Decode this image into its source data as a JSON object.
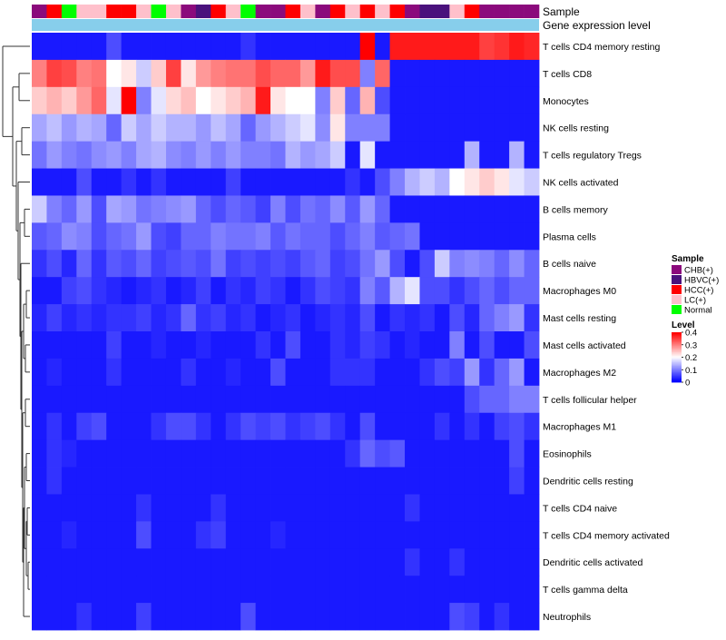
{
  "chart_data": {
    "type": "heatmap",
    "annotation_tracks": [
      "Sample",
      "Gene expression level"
    ],
    "sample_groups": {
      "CHB": "CHB(+)",
      "HBVC": "HBVC(+)",
      "HCC": "HCC(+)",
      "LC": "LC(+)",
      "Normal": "Normal"
    },
    "sample_colors": {
      "CHB": "#8b0a7c",
      "HBVC": "#4a127c",
      "HCC": "#ff0000",
      "LC": "#ffc0cb",
      "Normal": "#00ff00"
    },
    "gene_expression_color": "#87ceeb",
    "columns": [
      "CHB",
      "HCC",
      "Normal",
      "LC",
      "LC",
      "HCC",
      "HCC",
      "LC",
      "Normal",
      "LC",
      "CHB",
      "HBVC",
      "HCC",
      "LC",
      "Normal",
      "CHB",
      "CHB",
      "HCC",
      "LC",
      "CHB",
      "HCC",
      "LC",
      "HCC",
      "LC",
      "HCC",
      "CHB",
      "HBVC",
      "HBVC",
      "LC",
      "HCC",
      "CHB",
      "CHB",
      "CHB",
      "CHB"
    ],
    "rows": [
      "T cells CD4 memory resting",
      "T cells CD8",
      "Monocytes",
      "NK cells resting",
      "T cells regulatory  Tregs",
      "NK cells activated",
      "B cells memory",
      "Plasma cells",
      "B cells naive",
      "Macrophages M0",
      "Mast cells resting",
      "Mast cells activated",
      "Macrophages M2",
      "T cells follicular helper",
      "Macrophages M1",
      "Eosinophils",
      "Dendritic cells resting",
      "T cells CD4 naive",
      "T cells CD4 memory activated",
      "Dendritic cells activated",
      "T cells gamma delta",
      "Neutrophils"
    ],
    "values": [
      [
        0.02,
        0.02,
        0.02,
        0.02,
        0.02,
        0.06,
        0.02,
        0.02,
        0.02,
        0.02,
        0.02,
        0.02,
        0.02,
        0.02,
        0.04,
        0.02,
        0.02,
        0.02,
        0.02,
        0.02,
        0.02,
        0.02,
        0.4,
        0.02,
        0.38,
        0.38,
        0.38,
        0.38,
        0.38,
        0.38,
        0.35,
        0.36,
        0.38,
        0.37
      ],
      [
        0.3,
        0.35,
        0.34,
        0.3,
        0.31,
        0.2,
        0.22,
        0.16,
        0.24,
        0.35,
        0.22,
        0.28,
        0.3,
        0.31,
        0.31,
        0.34,
        0.32,
        0.32,
        0.28,
        0.38,
        0.34,
        0.34,
        0.1,
        0.32,
        0.02,
        0.02,
        0.02,
        0.02,
        0.02,
        0.02,
        0.02,
        0.02,
        0.02,
        0.02
      ],
      [
        0.24,
        0.26,
        0.24,
        0.28,
        0.32,
        0.18,
        0.4,
        0.1,
        0.18,
        0.23,
        0.25,
        0.2,
        0.22,
        0.24,
        0.26,
        0.38,
        0.22,
        0.2,
        0.2,
        0.1,
        0.24,
        0.08,
        0.26,
        0.06,
        0.02,
        0.02,
        0.02,
        0.02,
        0.02,
        0.02,
        0.02,
        0.02,
        0.02,
        0.02
      ],
      [
        0.13,
        0.15,
        0.12,
        0.14,
        0.13,
        0.08,
        0.16,
        0.13,
        0.16,
        0.14,
        0.14,
        0.12,
        0.15,
        0.13,
        0.08,
        0.12,
        0.14,
        0.16,
        0.18,
        0.11,
        0.22,
        0.1,
        0.1,
        0.1,
        0.02,
        0.02,
        0.02,
        0.02,
        0.02,
        0.02,
        0.02,
        0.02,
        0.02,
        0.02
      ],
      [
        0.09,
        0.12,
        0.1,
        0.09,
        0.11,
        0.12,
        0.1,
        0.13,
        0.14,
        0.11,
        0.1,
        0.12,
        0.1,
        0.12,
        0.1,
        0.1,
        0.09,
        0.14,
        0.12,
        0.13,
        0.16,
        0.02,
        0.18,
        0.02,
        0.02,
        0.02,
        0.02,
        0.02,
        0.02,
        0.14,
        0.02,
        0.02,
        0.14,
        0.02
      ],
      [
        0.02,
        0.02,
        0.02,
        0.06,
        0.02,
        0.02,
        0.04,
        0.02,
        0.04,
        0.02,
        0.02,
        0.02,
        0.02,
        0.05,
        0.02,
        0.02,
        0.02,
        0.02,
        0.02,
        0.02,
        0.02,
        0.04,
        0.02,
        0.06,
        0.1,
        0.14,
        0.16,
        0.14,
        0.2,
        0.22,
        0.24,
        0.22,
        0.18,
        0.16
      ],
      [
        0.16,
        0.1,
        0.08,
        0.12,
        0.06,
        0.13,
        0.12,
        0.09,
        0.1,
        0.11,
        0.12,
        0.08,
        0.06,
        0.08,
        0.07,
        0.05,
        0.1,
        0.06,
        0.09,
        0.08,
        0.11,
        0.07,
        0.12,
        0.08,
        0.02,
        0.02,
        0.02,
        0.02,
        0.02,
        0.02,
        0.02,
        0.02,
        0.02,
        0.02
      ],
      [
        0.07,
        0.08,
        0.11,
        0.1,
        0.06,
        0.08,
        0.09,
        0.12,
        0.06,
        0.05,
        0.08,
        0.08,
        0.1,
        0.09,
        0.09,
        0.1,
        0.07,
        0.09,
        0.08,
        0.08,
        0.06,
        0.08,
        0.1,
        0.07,
        0.08,
        0.09,
        0.02,
        0.02,
        0.02,
        0.02,
        0.02,
        0.02,
        0.02,
        0.02
      ],
      [
        0.04,
        0.06,
        0.03,
        0.08,
        0.04,
        0.07,
        0.06,
        0.08,
        0.05,
        0.06,
        0.07,
        0.06,
        0.09,
        0.05,
        0.06,
        0.05,
        0.06,
        0.05,
        0.07,
        0.08,
        0.05,
        0.06,
        0.09,
        0.12,
        0.06,
        0.02,
        0.06,
        0.16,
        0.1,
        0.11,
        0.1,
        0.08,
        0.11,
        0.08
      ],
      [
        0.02,
        0.02,
        0.05,
        0.06,
        0.04,
        0.03,
        0.02,
        0.03,
        0.04,
        0.02,
        0.03,
        0.05,
        0.02,
        0.04,
        0.03,
        0.05,
        0.04,
        0.02,
        0.04,
        0.06,
        0.05,
        0.04,
        0.1,
        0.07,
        0.14,
        0.18,
        0.06,
        0.06,
        0.04,
        0.06,
        0.08,
        0.06,
        0.08,
        0.08
      ],
      [
        0.03,
        0.05,
        0.03,
        0.04,
        0.03,
        0.04,
        0.04,
        0.05,
        0.03,
        0.04,
        0.08,
        0.04,
        0.05,
        0.03,
        0.04,
        0.02,
        0.03,
        0.04,
        0.02,
        0.03,
        0.04,
        0.03,
        0.06,
        0.02,
        0.04,
        0.03,
        0.04,
        0.02,
        0.06,
        0.03,
        0.08,
        0.1,
        0.12,
        0.04
      ],
      [
        0.02,
        0.02,
        0.02,
        0.02,
        0.02,
        0.05,
        0.02,
        0.02,
        0.03,
        0.02,
        0.02,
        0.03,
        0.02,
        0.02,
        0.02,
        0.04,
        0.02,
        0.06,
        0.02,
        0.02,
        0.04,
        0.03,
        0.05,
        0.04,
        0.02,
        0.03,
        0.02,
        0.02,
        0.1,
        0.02,
        0.06,
        0.02,
        0.02,
        0.06
      ],
      [
        0.02,
        0.03,
        0.02,
        0.02,
        0.02,
        0.04,
        0.02,
        0.02,
        0.02,
        0.02,
        0.04,
        0.02,
        0.02,
        0.03,
        0.02,
        0.02,
        0.06,
        0.02,
        0.02,
        0.02,
        0.04,
        0.04,
        0.04,
        0.02,
        0.02,
        0.02,
        0.04,
        0.06,
        0.05,
        0.12,
        0.04,
        0.08,
        0.12,
        0.02
      ],
      [
        0.02,
        0.02,
        0.02,
        0.02,
        0.02,
        0.02,
        0.02,
        0.02,
        0.02,
        0.02,
        0.02,
        0.02,
        0.02,
        0.02,
        0.02,
        0.02,
        0.02,
        0.02,
        0.02,
        0.02,
        0.02,
        0.02,
        0.02,
        0.02,
        0.02,
        0.02,
        0.02,
        0.02,
        0.02,
        0.06,
        0.08,
        0.08,
        0.1,
        0.1
      ],
      [
        0.02,
        0.04,
        0.02,
        0.05,
        0.06,
        0.02,
        0.02,
        0.02,
        0.04,
        0.06,
        0.06,
        0.04,
        0.02,
        0.04,
        0.06,
        0.05,
        0.06,
        0.04,
        0.05,
        0.06,
        0.04,
        0.02,
        0.06,
        0.02,
        0.02,
        0.02,
        0.02,
        0.04,
        0.02,
        0.04,
        0.02,
        0.05,
        0.06,
        0.04
      ],
      [
        0.02,
        0.04,
        0.03,
        0.02,
        0.02,
        0.02,
        0.02,
        0.02,
        0.02,
        0.02,
        0.02,
        0.02,
        0.02,
        0.02,
        0.02,
        0.02,
        0.02,
        0.02,
        0.02,
        0.02,
        0.02,
        0.04,
        0.08,
        0.06,
        0.07,
        0.02,
        0.02,
        0.02,
        0.02,
        0.02,
        0.02,
        0.02,
        0.06,
        0.02
      ],
      [
        0.02,
        0.04,
        0.02,
        0.02,
        0.02,
        0.02,
        0.02,
        0.02,
        0.02,
        0.02,
        0.02,
        0.02,
        0.02,
        0.02,
        0.02,
        0.02,
        0.02,
        0.02,
        0.02,
        0.02,
        0.02,
        0.02,
        0.02,
        0.02,
        0.02,
        0.02,
        0.02,
        0.02,
        0.02,
        0.02,
        0.02,
        0.02,
        0.05,
        0.02
      ],
      [
        0.02,
        0.02,
        0.02,
        0.02,
        0.02,
        0.02,
        0.02,
        0.04,
        0.02,
        0.02,
        0.02,
        0.02,
        0.04,
        0.02,
        0.02,
        0.02,
        0.02,
        0.02,
        0.02,
        0.02,
        0.02,
        0.02,
        0.02,
        0.02,
        0.02,
        0.04,
        0.02,
        0.02,
        0.02,
        0.02,
        0.02,
        0.02,
        0.02,
        0.02
      ],
      [
        0.02,
        0.02,
        0.03,
        0.02,
        0.02,
        0.02,
        0.02,
        0.06,
        0.02,
        0.02,
        0.02,
        0.04,
        0.05,
        0.02,
        0.02,
        0.02,
        0.03,
        0.02,
        0.02,
        0.02,
        0.02,
        0.02,
        0.02,
        0.02,
        0.02,
        0.02,
        0.02,
        0.02,
        0.02,
        0.02,
        0.02,
        0.02,
        0.02,
        0.02
      ],
      [
        0.02,
        0.02,
        0.02,
        0.02,
        0.02,
        0.02,
        0.02,
        0.02,
        0.02,
        0.02,
        0.02,
        0.02,
        0.02,
        0.02,
        0.02,
        0.02,
        0.02,
        0.02,
        0.02,
        0.02,
        0.02,
        0.02,
        0.02,
        0.02,
        0.02,
        0.04,
        0.02,
        0.02,
        0.04,
        0.02,
        0.02,
        0.02,
        0.02,
        0.02
      ],
      [
        0.02,
        0.02,
        0.02,
        0.02,
        0.02,
        0.02,
        0.02,
        0.02,
        0.02,
        0.02,
        0.02,
        0.02,
        0.02,
        0.02,
        0.02,
        0.02,
        0.02,
        0.02,
        0.02,
        0.02,
        0.02,
        0.02,
        0.02,
        0.02,
        0.02,
        0.02,
        0.02,
        0.02,
        0.02,
        0.02,
        0.02,
        0.02,
        0.02,
        0.02
      ],
      [
        0.02,
        0.02,
        0.02,
        0.04,
        0.02,
        0.02,
        0.02,
        0.05,
        0.02,
        0.02,
        0.02,
        0.02,
        0.02,
        0.02,
        0.06,
        0.02,
        0.02,
        0.02,
        0.02,
        0.02,
        0.02,
        0.02,
        0.02,
        0.02,
        0.02,
        0.02,
        0.02,
        0.02,
        0.06,
        0.05,
        0.02,
        0.04,
        0.02,
        0.02
      ]
    ],
    "color_scale": {
      "min": 0,
      "max": 0.4,
      "low": "#0000ff",
      "mid": "#ffffff",
      "high": "#ff0000"
    },
    "legend": {
      "sample_title": "Sample",
      "level_title": "Level",
      "level_ticks": [
        "0.4",
        "0.3",
        "0.2",
        "0.1",
        "0"
      ]
    }
  }
}
